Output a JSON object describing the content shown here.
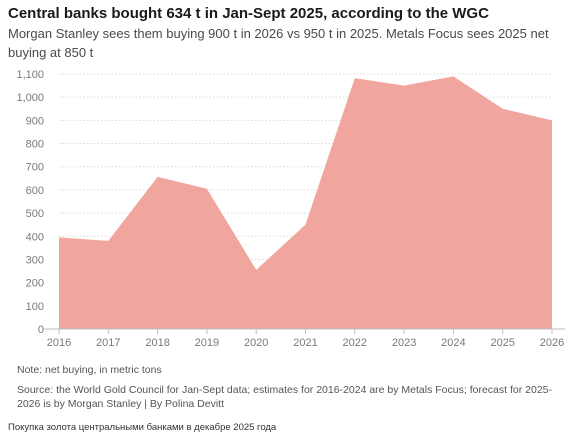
{
  "title": "Central banks bought 634 t in Jan-Sept 2025, according to the WGC",
  "subtitle": "Morgan Stanley sees them buying 900 t in 2026 vs 950 t in 2025. Metals Focus sees 2025 net buying at 850 t",
  "note": "Note: net buying, in metric tons",
  "source": "Source: the World Gold Council for Jan-Sept data; estimates for 2016-2024 are by Metals Focus; forecast for 2025-2026 is by Morgan Stanley | By Polina Devitt",
  "caption": "Покупка золота центральными банками в декабре 2025 года",
  "colors": {
    "area": "#f0a59e",
    "grid": "#d9d9d9",
    "axis": "#bdbdbd"
  },
  "chart_data": {
    "type": "area",
    "x": [
      "2016",
      "2017",
      "2018",
      "2019",
      "2020",
      "2021",
      "2022",
      "2023",
      "2024",
      "2025",
      "2026"
    ],
    "series": [
      {
        "values": [
          395,
          380,
          656,
          605,
          255,
          450,
          1082,
          1050,
          1090,
          950,
          900
        ]
      }
    ],
    "ylim": [
      0,
      1100
    ],
    "yticks": [
      0,
      100,
      200,
      300,
      400,
      500,
      600,
      700,
      800,
      900,
      1000,
      1100
    ],
    "ytick_labels": [
      "0",
      "100",
      "200",
      "300",
      "400",
      "500",
      "600",
      "700",
      "800",
      "900",
      "1,000",
      "1,100"
    ],
    "grid": true
  }
}
